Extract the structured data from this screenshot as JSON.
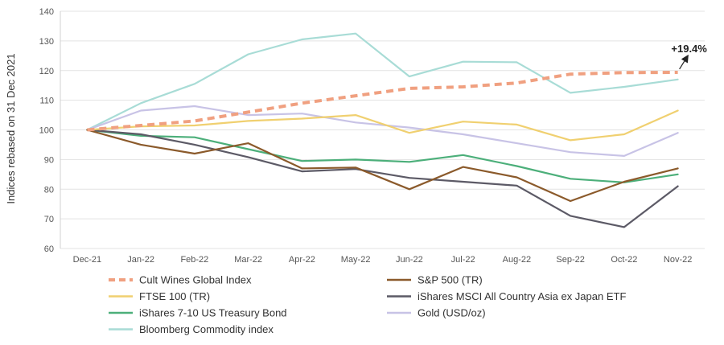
{
  "chart_data": {
    "type": "line",
    "ylabel": "Indices rebased on 31 Dec 2021",
    "xlabel": "",
    "ylim": [
      60,
      140
    ],
    "yticks": [
      60,
      70,
      80,
      90,
      100,
      110,
      120,
      130,
      140
    ],
    "grid": "horizontal",
    "legend_position": "bottom",
    "categories": [
      "Dec-21",
      "Jan-22",
      "Feb-22",
      "Mar-22",
      "Apr-22",
      "May-22",
      "Jun-22",
      "Jul-22",
      "Aug-22",
      "Sep-22",
      "Oct-22",
      "Nov-22"
    ],
    "series": [
      {
        "name": "Cult Wines Global Index",
        "color": "#f0a080",
        "dashed": true,
        "values": [
          100,
          101.5,
          103,
          106,
          109,
          111.5,
          114,
          114.5,
          115.8,
          118.8,
          119.3,
          119.4
        ]
      },
      {
        "name": "S&P 500 (TR)",
        "color": "#8b5a2b",
        "dashed": false,
        "values": [
          100,
          95,
          92,
          95.5,
          87,
          87.3,
          80,
          87.5,
          84,
          76,
          82.5,
          87
        ]
      },
      {
        "name": "FTSE 100 (TR)",
        "color": "#f0d070",
        "dashed": false,
        "values": [
          100,
          101.2,
          101.5,
          103,
          103.8,
          105,
          99,
          102.8,
          101.8,
          96.5,
          98.5,
          106.5
        ]
      },
      {
        "name": "iShares MSCI All Country Asia ex Japan ETF",
        "color": "#5c5a66",
        "dashed": false,
        "values": [
          100,
          98.5,
          95,
          90.8,
          86,
          86.8,
          83.8,
          82.5,
          81.2,
          71,
          67.2,
          81
        ]
      },
      {
        "name": "iShares 7-10 US Treasury Bond",
        "color": "#4caf7a",
        "dashed": false,
        "values": [
          100,
          98,
          97.5,
          93.5,
          89.5,
          90,
          89.2,
          91.5,
          87.8,
          83.5,
          82.3,
          85
        ]
      },
      {
        "name": "Gold (USD/oz)",
        "color": "#c8c3e6",
        "dashed": false,
        "values": [
          100,
          106.5,
          108,
          105,
          105.5,
          102.5,
          100.8,
          98.5,
          95.5,
          92.5,
          91.2,
          99
        ]
      },
      {
        "name": "Bloomberg Commodity index",
        "color": "#a8dcd6",
        "dashed": false,
        "values": [
          100,
          109,
          115.5,
          125.5,
          130.5,
          132.5,
          118,
          123,
          122.8,
          112.5,
          114.5,
          117
        ]
      }
    ],
    "annotations": [
      {
        "text": "+19.4%",
        "series": "Cult Wines Global Index",
        "category": "Nov-22"
      }
    ]
  }
}
